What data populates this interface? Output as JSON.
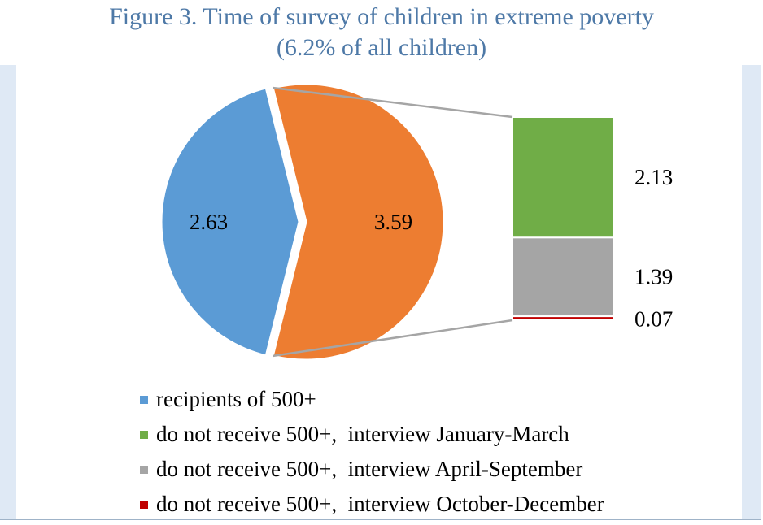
{
  "title_line1": "Figure 3. Time of survey of children in extreme poverty",
  "title_line2": "(6.2% of all children)",
  "chart_data": {
    "type": "pie",
    "subtype": "bar-of-pie",
    "slices": [
      {
        "name": "recipients of 500+",
        "value": 2.63,
        "label": "2.63",
        "color": "#5b9bd5"
      },
      {
        "name": "do not receive 500+",
        "value": 3.59,
        "label": "3.59",
        "color": "#ed7d31"
      }
    ],
    "breakdown_of": "do not receive 500+",
    "breakdown": [
      {
        "name": "do not receive 500+,  interview January-March",
        "value": 2.13,
        "label": "2.13",
        "color": "#70ad47"
      },
      {
        "name": "do not receive 500+,  interview April-September",
        "value": 1.39,
        "label": "1.39",
        "color": "#a5a5a5"
      },
      {
        "name": "do not receive 500+,  interview October-December",
        "value": 0.07,
        "label": "0.07",
        "color": "#c00000"
      }
    ],
    "legend": [
      {
        "label": "recipients of 500+",
        "color": "#5b9bd5"
      },
      {
        "label": "do not receive 500+,  interview January-March",
        "color": "#70ad47"
      },
      {
        "label": "do not receive 500+,  interview April-September",
        "color": "#a5a5a5"
      },
      {
        "label": "do not receive 500+,  interview October-December",
        "color": "#c00000"
      }
    ],
    "legend_position": "bottom"
  }
}
